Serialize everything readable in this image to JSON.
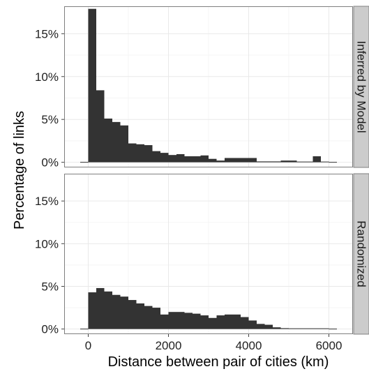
{
  "chart_data": {
    "type": "bar",
    "subtype": "faceted histogram",
    "xlabel": "Distance between pair of cities (km)",
    "ylabel": "Percentage of links",
    "xlim": [
      -600,
      6600
    ],
    "ylim": [
      -0.6,
      18.2
    ],
    "x_ticks": [
      0,
      2000,
      4000,
      6000
    ],
    "x_tick_labels": [
      "0",
      "2000",
      "4000",
      "6000"
    ],
    "y_ticks": [
      0,
      5,
      10,
      15
    ],
    "y_tick_labels": [
      "0%",
      "5%",
      "10%",
      "15%"
    ],
    "bin_edges": [
      0,
      200,
      400,
      600,
      800,
      1000,
      1200,
      1400,
      1600,
      1800,
      2000,
      2200,
      2400,
      2600,
      2800,
      3000,
      3200,
      3400,
      3600,
      3800,
      4000,
      4200,
      4400,
      4600,
      4800,
      5000,
      5200,
      5400,
      5600,
      5800,
      6000,
      6200
    ],
    "baseline_segments": [
      [
        -200,
        0
      ],
      [
        6000,
        6200
      ]
    ],
    "grid": true,
    "legend": "none",
    "colors": {
      "bar": "#333333",
      "panel_background": "#ffffff",
      "grid_major": "#e9e9e9",
      "grid_minor": "#f5f5f5",
      "panel_border": "#7f7f7f",
      "strip_background": "#cccccc"
    },
    "facets": [
      {
        "label": "Inferred by Model",
        "values": [
          17.9,
          8.4,
          5.1,
          4.7,
          4.3,
          2.2,
          2.1,
          2.0,
          1.3,
          1.1,
          0.85,
          0.95,
          0.7,
          0.7,
          0.8,
          0.4,
          0.2,
          0.5,
          0.5,
          0.5,
          0.5,
          0.1,
          0.1,
          0.1,
          0.2,
          0.2,
          0.0,
          0.0,
          0.7,
          0.0
        ]
      },
      {
        "label": "Randomized",
        "values": [
          4.3,
          4.8,
          4.4,
          4.0,
          3.8,
          3.4,
          3.0,
          2.7,
          2.5,
          1.7,
          2.0,
          2.0,
          1.9,
          1.8,
          1.6,
          1.3,
          1.6,
          1.7,
          1.7,
          1.4,
          1.0,
          0.6,
          0.5,
          0.2,
          0.1,
          0.05,
          0.0,
          0.0,
          0.0,
          0.0
        ]
      }
    ]
  }
}
